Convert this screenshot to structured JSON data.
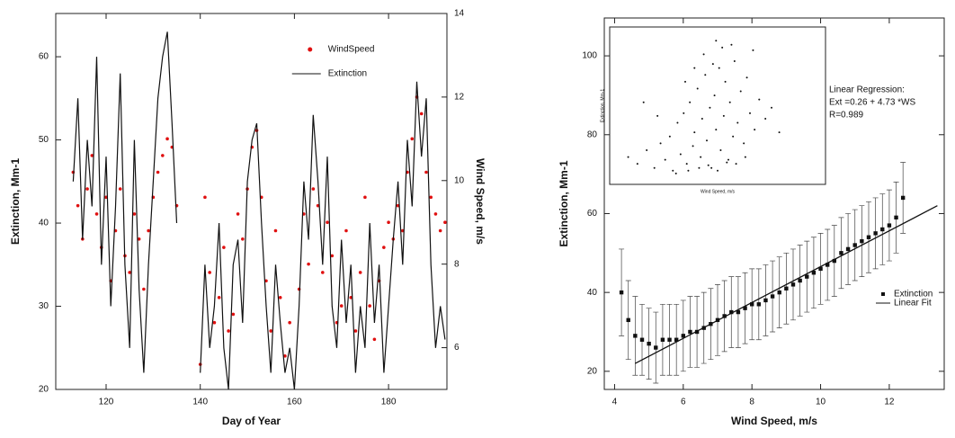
{
  "chart_data": [
    {
      "type": "line",
      "xlabel": "Day of Year",
      "ylabel": "Extinction, Mm-1",
      "y2label": "Wind Speed, m/s",
      "x": [
        113,
        114,
        115,
        116,
        117,
        118,
        119,
        120,
        121,
        122,
        123,
        124,
        125,
        126,
        127,
        128,
        129,
        130,
        131,
        132,
        133,
        134,
        135,
        136,
        137,
        138,
        139,
        140,
        141,
        142,
        143,
        144,
        145,
        146,
        147,
        148,
        149,
        150,
        151,
        152,
        153,
        154,
        155,
        156,
        157,
        158,
        159,
        160,
        161,
        162,
        163,
        164,
        165,
        166,
        167,
        168,
        169,
        170,
        171,
        172,
        173,
        174,
        175,
        176,
        177,
        178,
        179,
        180,
        181,
        182,
        183,
        184,
        185,
        186,
        187,
        188,
        189,
        190,
        191,
        192
      ],
      "series": [
        {
          "name": "WindSpeed",
          "color": "#e01010",
          "style": "markers",
          "marker": "circle",
          "axis": "y2",
          "values": [
            10.2,
            9.4,
            8.6,
            9.8,
            10.6,
            9.2,
            8.4,
            9.6,
            7.6,
            8.8,
            9.8,
            8.2,
            7.8,
            9.2,
            8.6,
            7.4,
            8.8,
            9.6,
            10.2,
            10.6,
            11.0,
            10.8,
            9.4,
            null,
            null,
            null,
            null,
            5.6,
            9.6,
            7.8,
            6.6,
            7.2,
            8.4,
            6.4,
            6.8,
            9.2,
            8.6,
            9.8,
            10.8,
            11.2,
            9.6,
            7.6,
            6.4,
            8.8,
            7.2,
            5.8,
            6.6,
            null,
            7.4,
            9.2,
            8.0,
            9.8,
            9.4,
            7.8,
            9.0,
            8.2,
            6.6,
            7.0,
            8.8,
            7.2,
            6.4,
            7.8,
            9.6,
            7.0,
            6.2,
            7.6,
            8.4,
            9.0,
            8.6,
            9.4,
            8.8,
            10.2,
            11.0,
            12.0,
            11.6,
            10.2,
            9.6,
            9.2,
            8.8,
            9.0
          ]
        },
        {
          "name": "Extinction",
          "color": "#111111",
          "style": "line",
          "values": [
            45,
            55,
            38,
            50,
            42,
            60,
            35,
            48,
            30,
            42,
            58,
            35,
            25,
            50,
            32,
            22,
            35,
            45,
            55,
            60,
            63,
            52,
            40,
            null,
            null,
            null,
            null,
            22,
            35,
            25,
            30,
            40,
            25,
            20,
            35,
            38,
            28,
            45,
            50,
            52,
            40,
            30,
            22,
            35,
            28,
            22,
            25,
            20,
            30,
            45,
            38,
            53,
            45,
            35,
            48,
            30,
            25,
            38,
            28,
            35,
            22,
            30,
            25,
            40,
            28,
            35,
            22,
            30,
            38,
            45,
            35,
            50,
            42,
            57,
            48,
            55,
            35,
            25,
            30,
            26
          ]
        }
      ],
      "xlim": [
        109.3,
        192.4
      ],
      "xticks": [
        120,
        140,
        160,
        180
      ],
      "ylim": [
        20,
        65.2
      ],
      "yticks": [
        20,
        30,
        40,
        50,
        60
      ],
      "y2lim": [
        5,
        14
      ],
      "y2ticks": [
        6,
        8,
        10,
        12,
        14
      ],
      "legend": "upper right"
    },
    {
      "type": "scatter",
      "xlabel": "Wind Speed, m/s",
      "ylabel": "Extinction, Mm-1",
      "annotations": [
        "Linear Regression:",
        "Ext =0.26 + 4.73 *WS",
        "R=0.989"
      ],
      "series": [
        {
          "name": "Extinction",
          "color": "#111111",
          "style": "markers",
          "marker": "square",
          "x": [
            4.2,
            4.4,
            4.6,
            4.8,
            5.0,
            5.2,
            5.4,
            5.6,
            5.8,
            6.0,
            6.2,
            6.4,
            6.6,
            6.8,
            7.0,
            7.2,
            7.4,
            7.6,
            7.8,
            8.0,
            8.2,
            8.4,
            8.6,
            8.8,
            9.0,
            9.2,
            9.4,
            9.6,
            9.8,
            10.0,
            10.2,
            10.4,
            10.6,
            10.8,
            11.0,
            11.2,
            11.4,
            11.6,
            11.8,
            12.0,
            12.2,
            12.4
          ],
          "values": [
            40,
            33,
            29,
            28,
            27,
            26,
            28,
            28,
            28,
            29,
            30,
            30,
            31,
            32,
            33,
            34,
            35,
            35,
            36,
            37,
            37,
            38,
            39,
            40,
            41,
            42,
            43,
            44,
            45,
            46,
            47,
            48,
            50,
            51,
            52,
            53,
            54,
            55,
            56,
            57,
            59,
            64
          ],
          "errors": [
            11,
            10,
            10,
            9,
            9,
            9,
            9,
            9,
            9,
            9,
            9,
            9,
            9,
            9,
            9,
            9,
            9,
            9,
            9,
            9,
            9,
            9,
            9,
            9,
            9,
            9,
            9,
            9,
            9,
            9,
            9,
            9,
            9,
            9,
            9,
            9,
            9,
            9,
            9,
            9,
            9,
            9
          ]
        },
        {
          "name": "Linear Fit",
          "color": "#111111",
          "style": "line",
          "x": [
            4.6,
            13.4
          ],
          "values": [
            22,
            62
          ]
        }
      ],
      "xlim": [
        3.7,
        13.6
      ],
      "xticks": [
        4,
        6,
        8,
        10,
        12
      ],
      "ylim": [
        15.4,
        109.6
      ],
      "yticks": [
        20,
        40,
        60,
        80,
        100
      ],
      "legend": "lower right"
    },
    {
      "type": "scatter",
      "xlabel": "Wind Speed, m/s",
      "ylabel": "Extinction, Mm-1",
      "series": [
        {
          "color": "#111111",
          "style": "markers",
          "marker": "dot",
          "x": [
            1.2,
            1.8,
            2.4,
            2.9,
            3.3,
            3.6,
            3.9,
            4.1,
            4.4,
            4.6,
            4.8,
            5.0,
            5.2,
            5.4,
            5.5,
            5.7,
            5.9,
            6.0,
            6.2,
            6.3,
            6.5,
            6.6,
            6.8,
            6.9,
            7.1,
            7.2,
            7.4,
            7.5,
            7.7,
            7.8,
            8.0,
            8.1,
            8.3,
            8.5,
            8.7,
            8.9,
            9.1,
            9.4,
            9.7,
            10.1,
            10.5,
            11.0,
            4.3,
            5.1,
            5.8,
            6.4,
            7.0,
            7.6,
            8.2,
            8.8,
            6.1,
            6.7,
            7.3,
            5.5,
            4.9,
            9.3,
            3.1,
            2.2,
            6.9,
            7.9
          ],
          "values": [
            30,
            25,
            35,
            22,
            40,
            28,
            45,
            20,
            55,
            32,
            62,
            25,
            70,
            38,
            48,
            80,
            30,
            58,
            90,
            42,
            66,
            22,
            75,
            50,
            95,
            35,
            60,
            85,
            28,
            70,
            45,
            100,
            55,
            78,
            40,
            88,
            62,
            50,
            72,
            58,
            66,
            48,
            18,
            20,
            22,
            24,
            20,
            26,
            25,
            30,
            105,
            98,
            110,
            95,
            85,
            108,
            60,
            70,
            115,
            112
          ]
        }
      ],
      "xlim": [
        0,
        14
      ],
      "ylim": [
        10,
        125
      ]
    }
  ]
}
